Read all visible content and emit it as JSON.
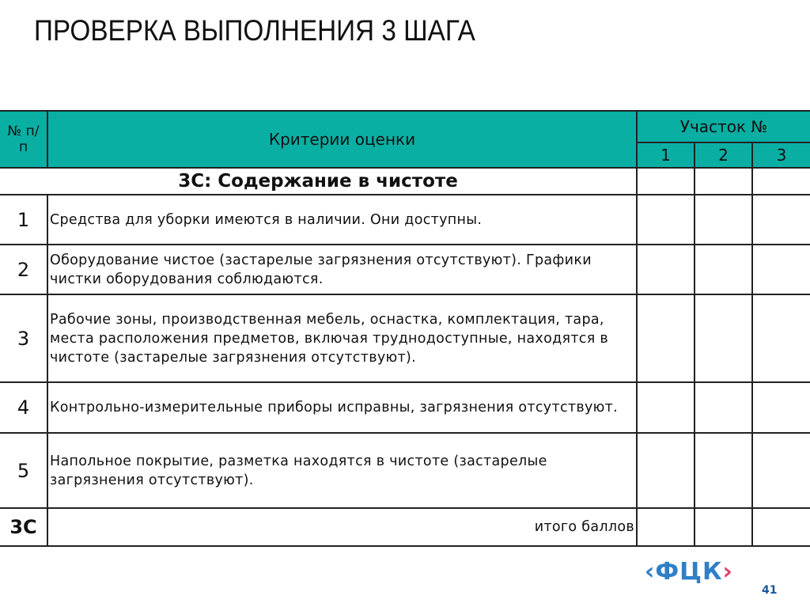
{
  "title": "ПРОВЕРКА ВЫПОЛНЕНИЯ 3 ШАГА",
  "colors": {
    "header": "#0aafa3",
    "logo_blue": "#2f7fc8",
    "logo_red": "#e0405f"
  },
  "table": {
    "header": {
      "num": "№ п/п",
      "criteria": "Критерии оценки",
      "area": "Участок №",
      "areas": [
        "1",
        "2",
        "3"
      ]
    },
    "section": "3С: Содержание в чистоте",
    "rows": [
      {
        "n": "1",
        "text": "Средства для уборки имеются в наличии. Они доступны."
      },
      {
        "n": "2",
        "text": "Оборудование чистое (застарелые загрязнения отсутствуют). Графики чистки оборудования соблюдаются."
      },
      {
        "n": "3",
        "text": "Рабочие зоны, производственная мебель, оснастка, комплектация, тара, места расположения предметов, включая труднодоступные, находятся в чистоте (застарелые загрязнения отсутствуют)."
      },
      {
        "n": "4",
        "text": "Контрольно-измерительные приборы исправны, загрязнения отсутствуют."
      },
      {
        "n": "5",
        "text": "Напольное покрытие, разметка находятся в чистоте (застарелые загрязнения отсутствуют)."
      }
    ],
    "total": {
      "label": "3С",
      "text": "итого баллов"
    }
  },
  "logo": {
    "text": "ФЦК"
  },
  "page_number": "41"
}
